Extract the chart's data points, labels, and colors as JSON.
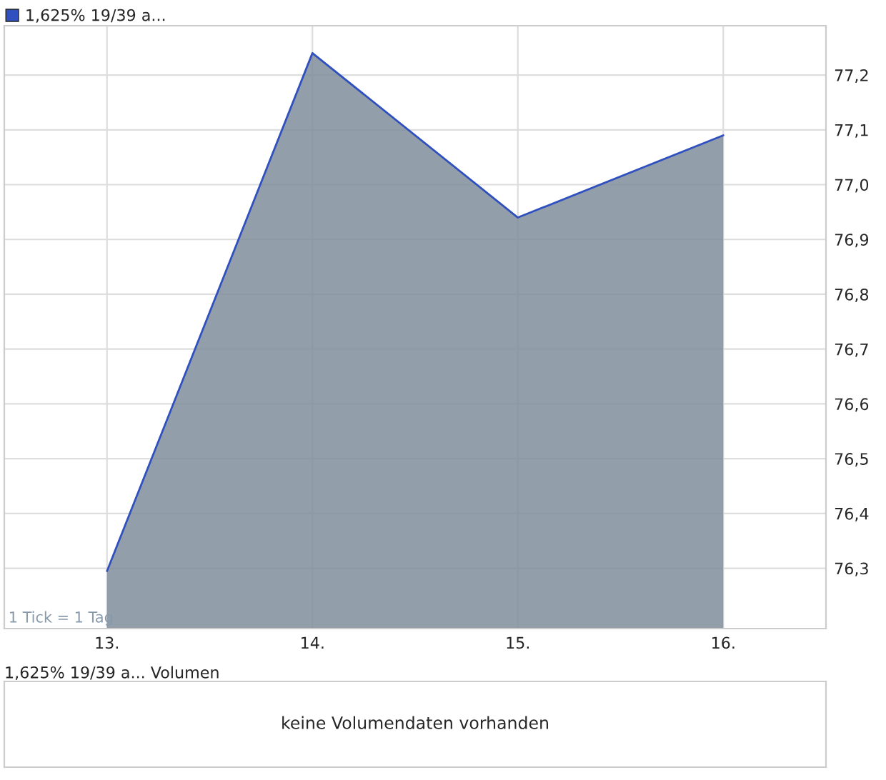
{
  "chart_data": [
    {
      "type": "area",
      "categories": [
        "13.",
        "14.",
        "15.",
        "16."
      ],
      "series": [
        {
          "name": "1,625% 19/39 a...",
          "color": "#3050c0",
          "values": [
            76.295,
            77.24,
            76.94,
            77.09
          ]
        }
      ],
      "ylim": [
        76.19,
        77.29
      ],
      "yticks": [
        {
          "value": 76.3,
          "label": "76,3"
        },
        {
          "value": 76.4,
          "label": "76,4"
        },
        {
          "value": 76.5,
          "label": "76,5"
        },
        {
          "value": 76.6,
          "label": "76,6"
        },
        {
          "value": 76.7,
          "label": "76,7"
        },
        {
          "value": 76.8,
          "label": "76,8"
        },
        {
          "value": 76.9,
          "label": "76,9"
        },
        {
          "value": 77.0,
          "label": "77,0"
        },
        {
          "value": 77.1,
          "label": "77,1"
        },
        {
          "value": 77.2,
          "label": "77,2"
        }
      ],
      "grid": true,
      "legend": "top left",
      "annotations": [
        "1 Tick = 1 Tag"
      ]
    },
    {
      "type": "other",
      "title": "1,625% 19/39 a... Volumen",
      "annotations": [
        "keine Volumendaten vorhanden"
      ]
    }
  ]
}
